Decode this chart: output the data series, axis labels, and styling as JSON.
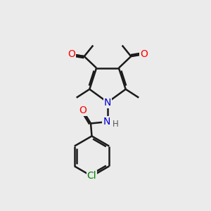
{
  "bg_color": "#ebebeb",
  "atom_colors": {
    "C": "#000000",
    "N": "#0000cc",
    "O": "#ff0000",
    "Cl": "#008000",
    "H": "#555555"
  },
  "bond_color": "#1a1a1a",
  "bond_width": 1.8,
  "font_size_atom": 10,
  "font_size_small": 8.5
}
